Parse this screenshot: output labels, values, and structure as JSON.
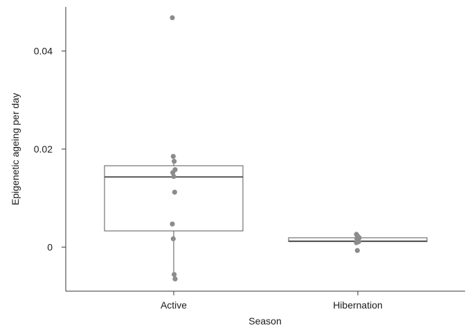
{
  "chart_data": {
    "type": "box",
    "xlabel": "Season",
    "ylabel": "Epigenetic ageing per day",
    "ylim": [
      -0.009,
      0.049
    ],
    "yticks": [
      0,
      0.02,
      0.04
    ],
    "ytick_labels": [
      "0",
      "0.02",
      "0.04"
    ],
    "categories": [
      "Active",
      "Hibernation"
    ],
    "grid": false,
    "legend": "none",
    "colors": {
      "points": "#8c8c8c",
      "box": "#555555",
      "axis": "#333333"
    },
    "boxes": [
      {
        "category": "Active",
        "q1": 0.0033,
        "median": 0.0143,
        "q3": 0.0166,
        "whisker_low": -0.0065,
        "whisker_high": 0.0186
      },
      {
        "category": "Hibernation",
        "q1": 0.0011,
        "median": 0.0012,
        "q3": 0.0019,
        "whisker_low": 0.001,
        "whisker_high": 0.0021
      }
    ],
    "points": [
      {
        "category": "Active",
        "values": [
          0.0468,
          0.0185,
          0.0175,
          0.0158,
          0.0152,
          0.0144,
          0.0112,
          0.0047,
          0.0017,
          -0.0056,
          -0.0065
        ]
      },
      {
        "category": "Hibernation",
        "values": [
          0.0026,
          0.0023,
          0.0021,
          0.0019,
          0.0017,
          0.0014,
          0.0011,
          0.0009,
          -0.0007
        ]
      }
    ]
  }
}
